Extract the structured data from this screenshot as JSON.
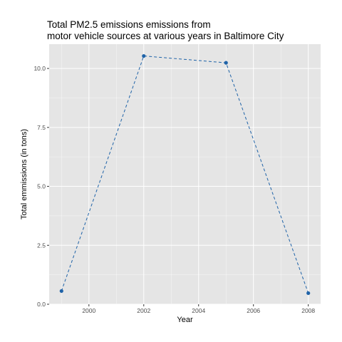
{
  "chart_data": {
    "type": "line",
    "title_lines": [
      "Total PM2.5 emissions emissions from",
      "motor vehicle sources at various years in Baltimore City"
    ],
    "xlabel": "Year",
    "ylabel": "Total emmissions (in tons)",
    "x": [
      1999,
      2002,
      2005,
      2008
    ],
    "series": [
      {
        "values": [
          0.56,
          10.53,
          10.24,
          0.47
        ]
      }
    ],
    "xlim": [
      1998.55,
      2008.45
    ],
    "ylim": [
      0.0,
      11.03
    ],
    "x_ticks": [
      2000,
      2002,
      2004,
      2006,
      2008
    ],
    "x_tick_labels": [
      "2000",
      "2002",
      "2004",
      "2006",
      "2008"
    ],
    "y_ticks": [
      0.0,
      2.5,
      5.0,
      7.5,
      10.0
    ],
    "y_tick_labels": [
      "0.0",
      "2.5",
      "5.0",
      "7.5",
      "10.0"
    ],
    "grid": true,
    "line_style": "dashed",
    "colors": {
      "series": "#1f63a8",
      "panel": "#e5e5e5",
      "grid": "#ffffff"
    }
  }
}
